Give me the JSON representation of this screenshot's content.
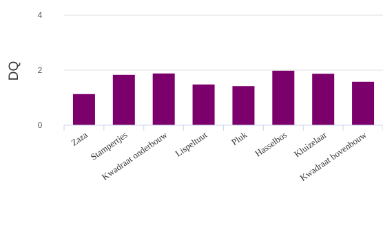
{
  "chart_data": {
    "type": "bar",
    "title": "",
    "xlabel": "",
    "ylabel": "DQ",
    "ylim": [
      0,
      4
    ],
    "yticks": [
      0,
      2,
      4
    ],
    "grid": true,
    "categories": [
      "Zaza",
      "Stampertjes",
      "Kwadraat onderbouw",
      "Lispeltuut",
      "Pluk",
      "Hasselbos",
      "Kluizelaar",
      "Kwadraat bovenbouw"
    ],
    "values": [
      1.13,
      1.83,
      1.88,
      1.48,
      1.42,
      1.98,
      1.87,
      1.58
    ],
    "bar_color": "#7b006b",
    "grid_color": "#e0e0e0",
    "axis_color": "#ccd6eb"
  }
}
